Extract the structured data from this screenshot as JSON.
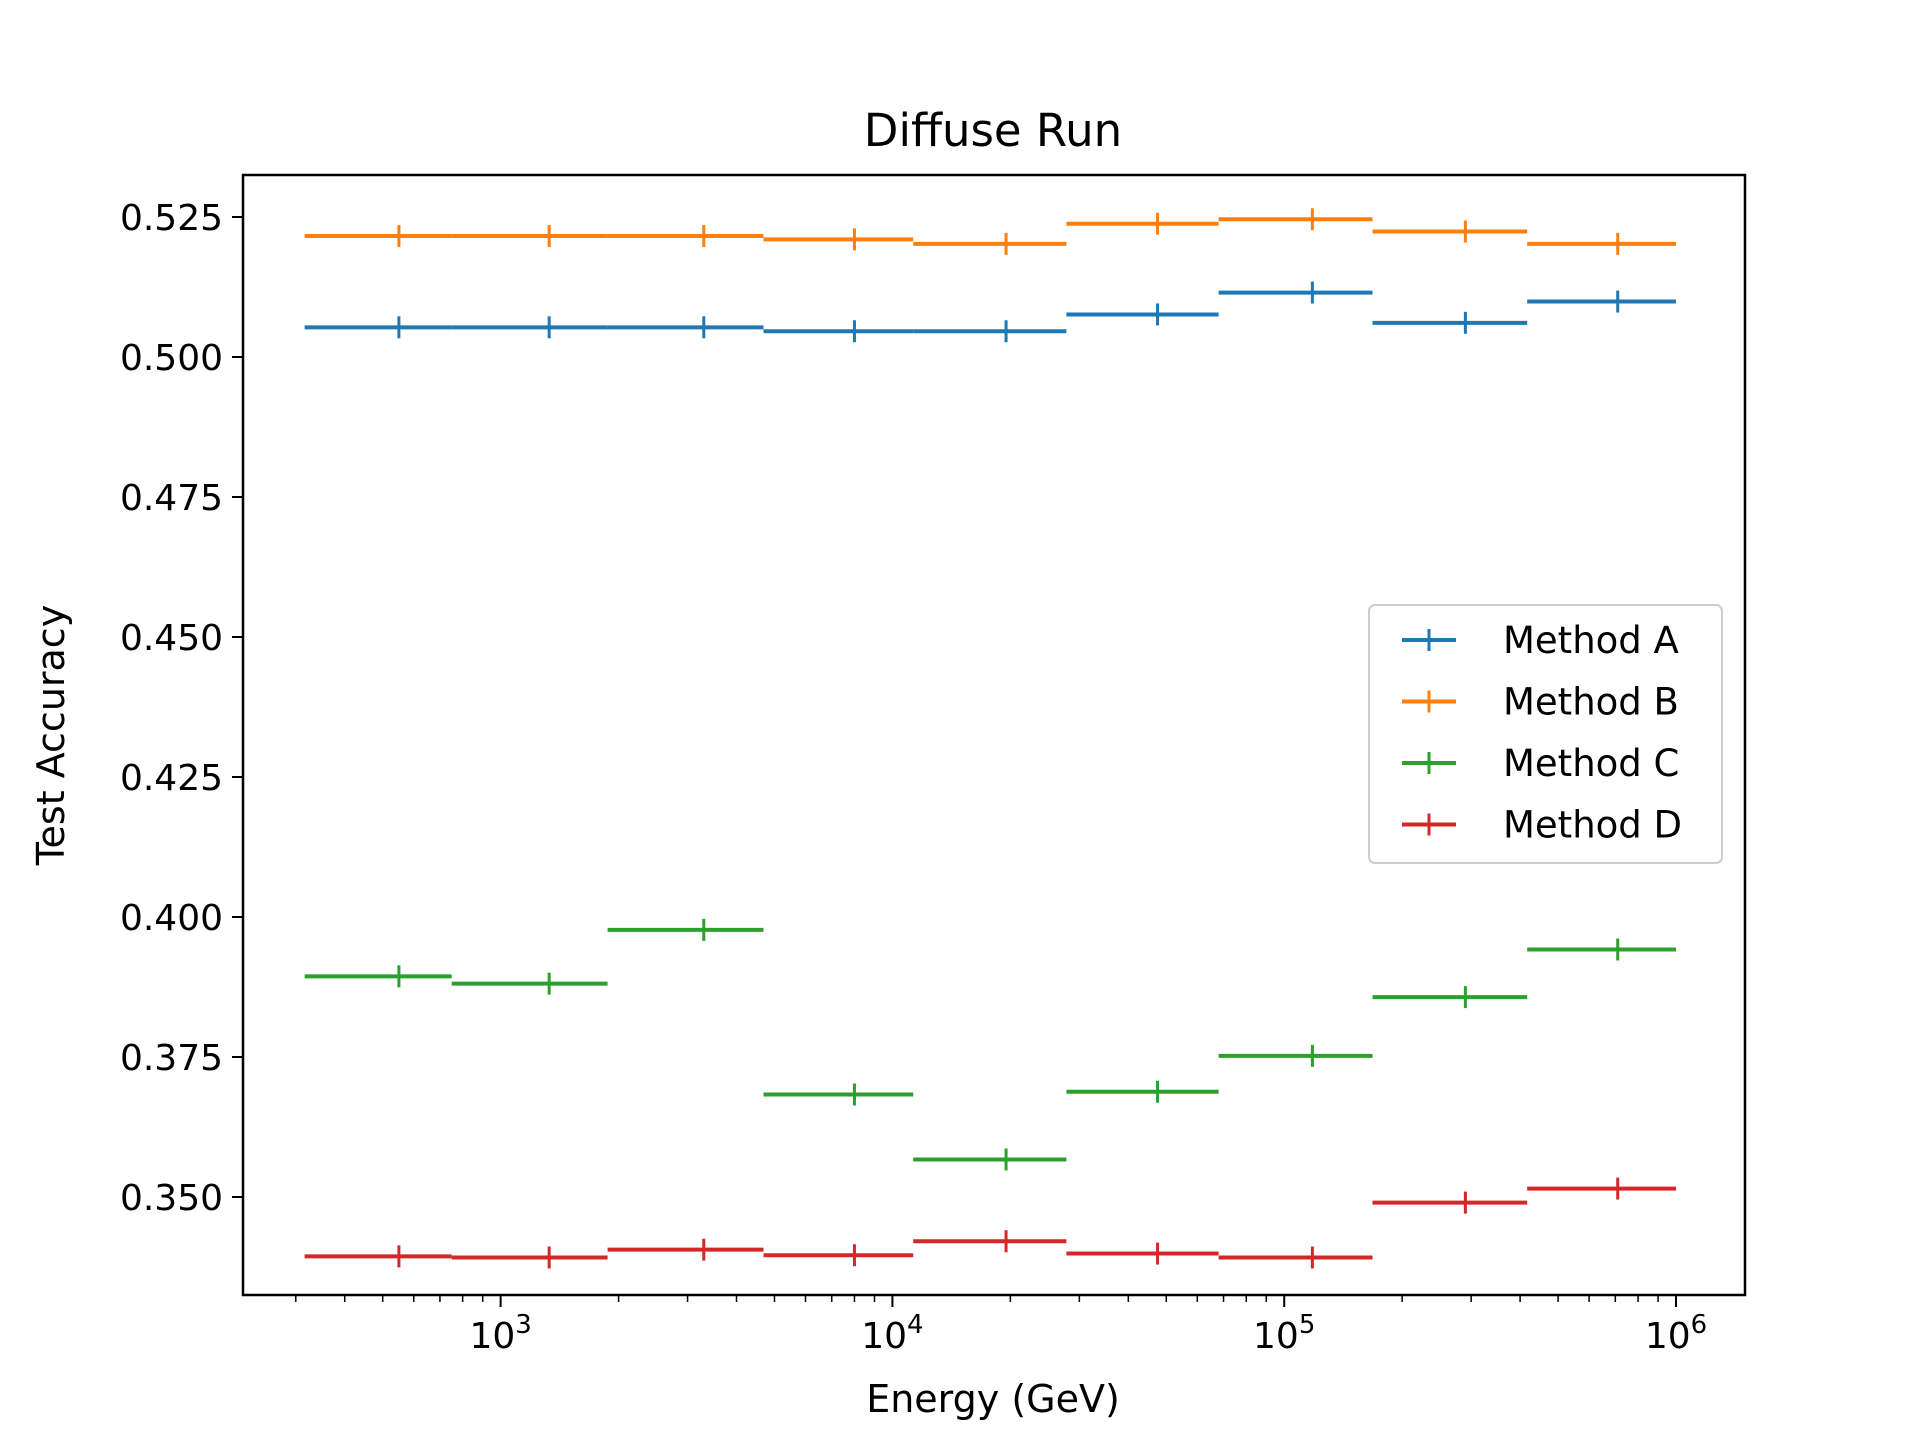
{
  "chart_data": {
    "type": "line",
    "style": "step-errorbar",
    "title": "Diffuse Run",
    "xlabel": "Energy (GeV)",
    "ylabel": "Test Accuracy",
    "xscale": "log",
    "xlim": [
      220,
      1500000
    ],
    "ylim": [
      0.3325,
      0.5325
    ],
    "grid": false,
    "legend_position": "center-right",
    "bin_edges": [
      316,
      750,
      1875,
      4687,
      11300,
      27800,
      68000,
      168000,
      417000,
      1000000
    ],
    "x": [
      550,
      1330,
      3300,
      8000,
      19500,
      47500,
      118000,
      290000,
      710000
    ],
    "yticks": [
      {
        "value": 0.35,
        "label": "0.350"
      },
      {
        "value": 0.375,
        "label": "0.375"
      },
      {
        "value": 0.4,
        "label": "0.400"
      },
      {
        "value": 0.425,
        "label": "0.425"
      },
      {
        "value": 0.45,
        "label": "0.450"
      },
      {
        "value": 0.475,
        "label": "0.475"
      },
      {
        "value": 0.5,
        "label": "0.500"
      },
      {
        "value": 0.525,
        "label": "0.525"
      }
    ],
    "xticks": [
      {
        "value": 1000,
        "base": "10",
        "exp": "3"
      },
      {
        "value": 10000,
        "base": "10",
        "exp": "4"
      },
      {
        "value": 100000,
        "base": "10",
        "exp": "5"
      },
      {
        "value": 1000000,
        "base": "10",
        "exp": "6"
      }
    ],
    "series": [
      {
        "name": "Method A",
        "color": "#1f77b4",
        "values": [
          0.5053,
          0.5053,
          0.5053,
          0.5046,
          0.5046,
          0.5076,
          0.5115,
          0.5061,
          0.5099
        ]
      },
      {
        "name": "Method B",
        "color": "#ff7f0e",
        "values": [
          0.5216,
          0.5216,
          0.5216,
          0.521,
          0.5202,
          0.5238,
          0.5246,
          0.5224,
          0.5202
        ]
      },
      {
        "name": "Method C",
        "color": "#2ca02c",
        "values": [
          0.3894,
          0.3881,
          0.3977,
          0.3683,
          0.3567,
          0.3688,
          0.3752,
          0.3857,
          0.3942
        ]
      },
      {
        "name": "Method D",
        "color": "#d62728",
        "values": [
          0.3394,
          0.3392,
          0.3406,
          0.3396,
          0.3421,
          0.3399,
          0.3392,
          0.349,
          0.3515
        ]
      }
    ]
  }
}
